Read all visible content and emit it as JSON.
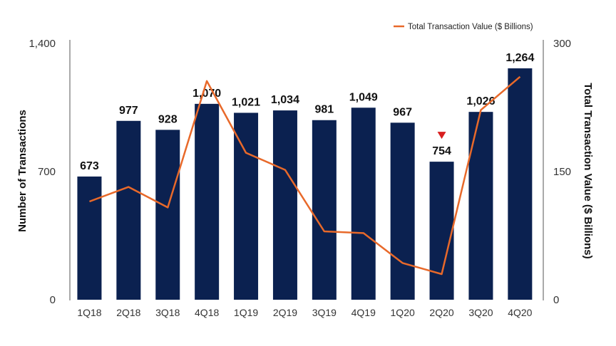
{
  "chart_data": {
    "type": "bar",
    "categories": [
      "1Q18",
      "2Q18",
      "3Q18",
      "4Q18",
      "1Q19",
      "2Q19",
      "3Q19",
      "4Q19",
      "1Q20",
      "2Q20",
      "3Q20",
      "4Q20"
    ],
    "series": [
      {
        "name": "Number of Transactions",
        "type": "bar",
        "axis": "left",
        "values": [
          673,
          977,
          928,
          1070,
          1021,
          1034,
          981,
          1049,
          967,
          754,
          1026,
          1264
        ],
        "labels": [
          "673",
          "977",
          "928",
          "1,070",
          "1,021",
          "1,034",
          "981",
          "1,049",
          "967",
          "754",
          "1,026",
          "1,264"
        ],
        "color": "#0b2150"
      },
      {
        "name": "Total Transaction Value ($ Billions)",
        "type": "line",
        "axis": "right",
        "values": [
          115,
          132,
          108,
          256,
          172,
          152,
          80,
          78,
          43,
          30,
          222,
          261
        ],
        "color": "#e8692a"
      }
    ],
    "y_left": {
      "label": "Number of Transactions",
      "range": [
        0,
        1400
      ],
      "ticks": [
        0,
        700,
        1400
      ],
      "tick_labels": [
        "0",
        "700",
        "1,400"
      ]
    },
    "y_right": {
      "label": "Total Transaction Value ($ Billions)",
      "range": [
        0,
        300
      ],
      "ticks": [
        0,
        150,
        300
      ],
      "tick_labels": [
        "0",
        "150",
        "300"
      ]
    },
    "legend": {
      "position": "top-right",
      "entries": [
        "Total Transaction Value ($ Billions)"
      ]
    },
    "annotation": {
      "category": "2Q20",
      "symbol": "down-triangle",
      "color": "#d81e1e"
    },
    "grid": false
  }
}
